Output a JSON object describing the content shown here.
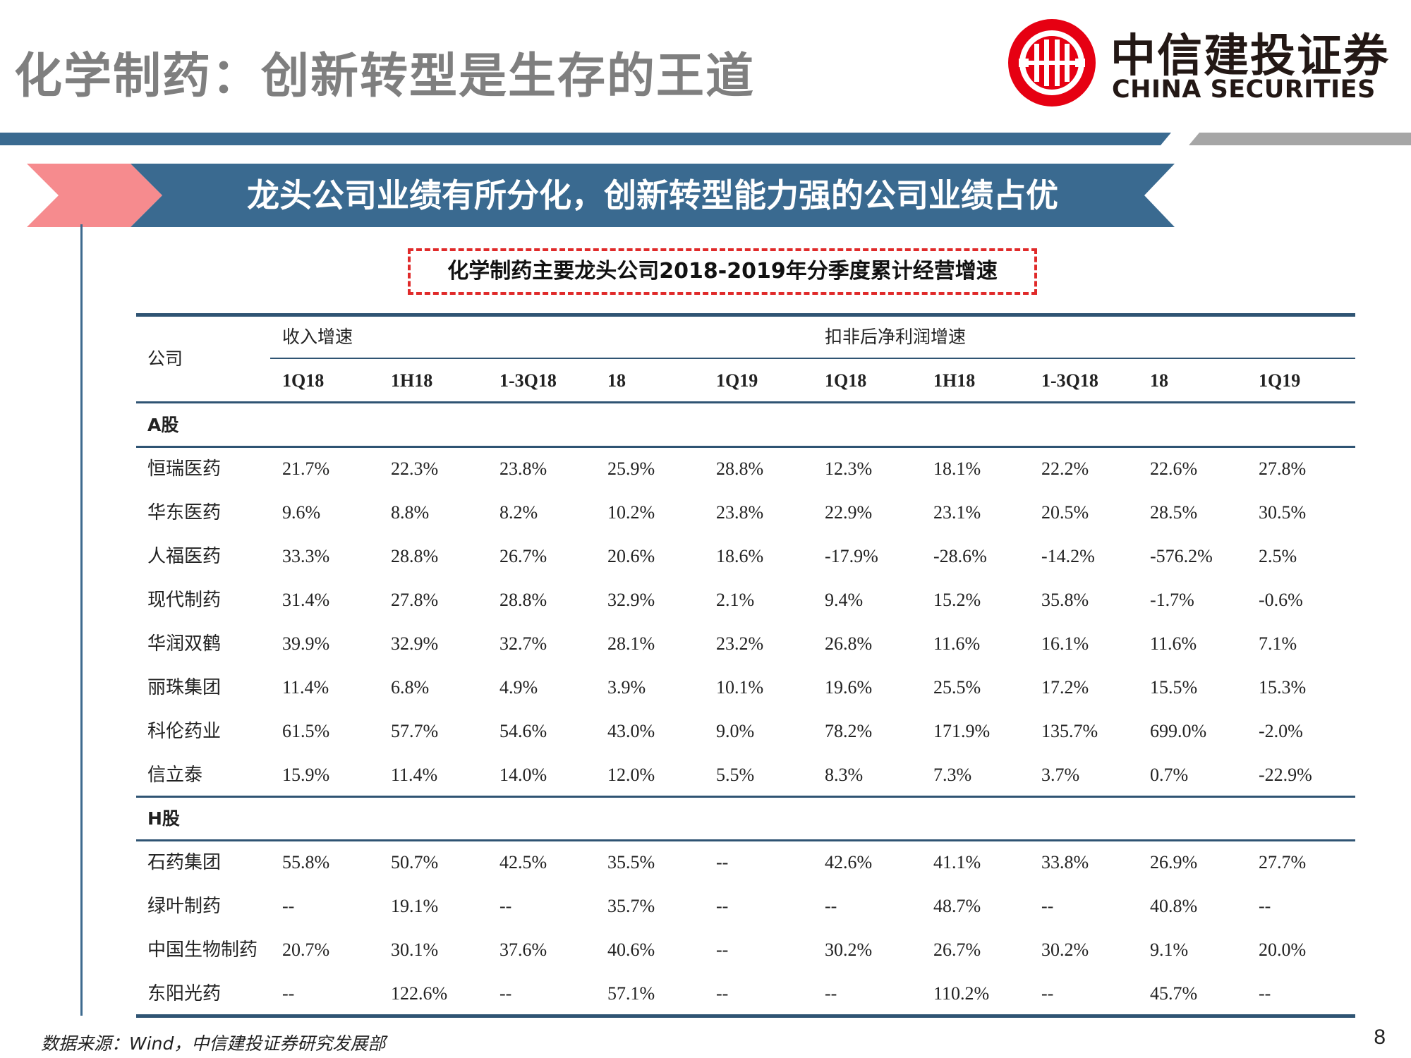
{
  "page": {
    "title": "化学制药：创新转型是生存的王道",
    "banner": "龙头公司业绩有所分化，创新转型能力强的公司业绩占优",
    "table_caption": "化学制药主要龙头公司2018-2019年分季度累计经营增速",
    "footer_source": "数据来源：Wind，中信建投证券研究发展部",
    "page_number": "8"
  },
  "logo": {
    "cn": "中信建投证券",
    "en": "CHINA SECURITIES",
    "color": "#e60012"
  },
  "colors": {
    "title_gray": "#7f7f7f",
    "banner_blue": "#3a6a90",
    "banner_pink": "#f68b8e",
    "rule_blue": "#2f5473",
    "caption_red": "#e02a2a"
  },
  "table": {
    "company_header": "公司",
    "group_headers": [
      "收入增速",
      "扣非后净利润增速"
    ],
    "periods": [
      "1Q18",
      "1H18",
      "1-3Q18",
      "18",
      "1Q19",
      "1Q18",
      "1H18",
      "1-3Q18",
      "18",
      "1Q19"
    ],
    "sections": [
      {
        "label": "A股",
        "rows": [
          {
            "company": "恒瑞医药",
            "values": [
              "21.7%",
              "22.3%",
              "23.8%",
              "25.9%",
              "28.8%",
              "12.3%",
              "18.1%",
              "22.2%",
              "22.6%",
              "27.8%"
            ]
          },
          {
            "company": "华东医药",
            "values": [
              "9.6%",
              "8.8%",
              "8.2%",
              "10.2%",
              "23.8%",
              "22.9%",
              "23.1%",
              "20.5%",
              "28.5%",
              "30.5%"
            ]
          },
          {
            "company": "人福医药",
            "values": [
              "33.3%",
              "28.8%",
              "26.7%",
              "20.6%",
              "18.6%",
              "-17.9%",
              "-28.6%",
              "-14.2%",
              "-576.2%",
              "2.5%"
            ]
          },
          {
            "company": "现代制药",
            "values": [
              "31.4%",
              "27.8%",
              "28.8%",
              "32.9%",
              "2.1%",
              "9.4%",
              "15.2%",
              "35.8%",
              "-1.7%",
              "-0.6%"
            ]
          },
          {
            "company": "华润双鹤",
            "values": [
              "39.9%",
              "32.9%",
              "32.7%",
              "28.1%",
              "23.2%",
              "26.8%",
              "11.6%",
              "16.1%",
              "11.6%",
              "7.1%"
            ]
          },
          {
            "company": "丽珠集团",
            "values": [
              "11.4%",
              "6.8%",
              "4.9%",
              "3.9%",
              "10.1%",
              "19.6%",
              "25.5%",
              "17.2%",
              "15.5%",
              "15.3%"
            ]
          },
          {
            "company": "科伦药业",
            "values": [
              "61.5%",
              "57.7%",
              "54.6%",
              "43.0%",
              "9.0%",
              "78.2%",
              "171.9%",
              "135.7%",
              "699.0%",
              "-2.0%"
            ]
          },
          {
            "company": "信立泰",
            "values": [
              "15.9%",
              "11.4%",
              "14.0%",
              "12.0%",
              "5.5%",
              "8.3%",
              "7.3%",
              "3.7%",
              "0.7%",
              "-22.9%"
            ]
          }
        ]
      },
      {
        "label": "H股",
        "rows": [
          {
            "company": "石药集团",
            "values": [
              "55.8%",
              "50.7%",
              "42.5%",
              "35.5%",
              "--",
              "42.6%",
              "41.1%",
              "33.8%",
              "26.9%",
              "27.7%"
            ]
          },
          {
            "company": "绿叶制药",
            "values": [
              "--",
              "19.1%",
              "--",
              "35.7%",
              "--",
              "--",
              "48.7%",
              "--",
              "40.8%",
              "--"
            ]
          },
          {
            "company": "中国生物制药",
            "values": [
              "20.7%",
              "30.1%",
              "37.6%",
              "40.6%",
              "--",
              "30.2%",
              "26.7%",
              "30.2%",
              "9.1%",
              "20.0%"
            ]
          },
          {
            "company": "东阳光药",
            "values": [
              "--",
              "122.6%",
              "--",
              "57.1%",
              "--",
              "--",
              "110.2%",
              "--",
              "45.7%",
              "--"
            ]
          }
        ]
      }
    ]
  }
}
